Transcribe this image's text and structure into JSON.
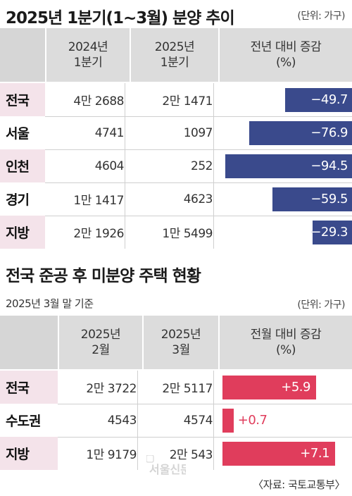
{
  "chart_data": [
    {
      "type": "bar",
      "title": "2025년 1분기(1~3월) 분양 추이",
      "unit": "(단위: 가구)",
      "column_headers": [
        "2024년\n1분기",
        "2025년\n1분기",
        "전년 대비 증감\n(%)"
      ],
      "categories": [
        "전국",
        "서울",
        "인천",
        "경기",
        "지방"
      ],
      "col1": [
        "4만 2688",
        "4741",
        "4604",
        "1만 1417",
        "2만 1926"
      ],
      "col2": [
        "2만 1471",
        "1097",
        "252",
        "4623",
        "1만 5499"
      ],
      "change_labels": [
        "−49.7",
        "−76.9",
        "−94.5",
        "−59.5",
        "−29.3"
      ],
      "values": [
        -49.7,
        -76.9,
        -94.5,
        -59.5,
        -29.3
      ],
      "color": "#3a4a8c"
    },
    {
      "type": "bar",
      "title": "전국 준공 후 미분양 주택 현황",
      "subtitle": "2025년 3월 말 기준",
      "unit": "(단위: 가구)",
      "column_headers": [
        "2025년\n2월",
        "2025년\n3월",
        "전월 대비 증감\n(%)"
      ],
      "categories": [
        "전국",
        "수도권",
        "지방"
      ],
      "col1": [
        "2만 3722",
        "4543",
        "1만 9179"
      ],
      "col2": [
        "2만 5117",
        "4574",
        "2만 543"
      ],
      "change_labels": [
        "+5.9",
        "+0.7",
        "+7.1"
      ],
      "values": [
        5.9,
        0.7,
        7.1
      ],
      "color": "#e03d5c"
    }
  ],
  "source": "〈자료: 국토교통부〉",
  "watermark": "서울신문"
}
